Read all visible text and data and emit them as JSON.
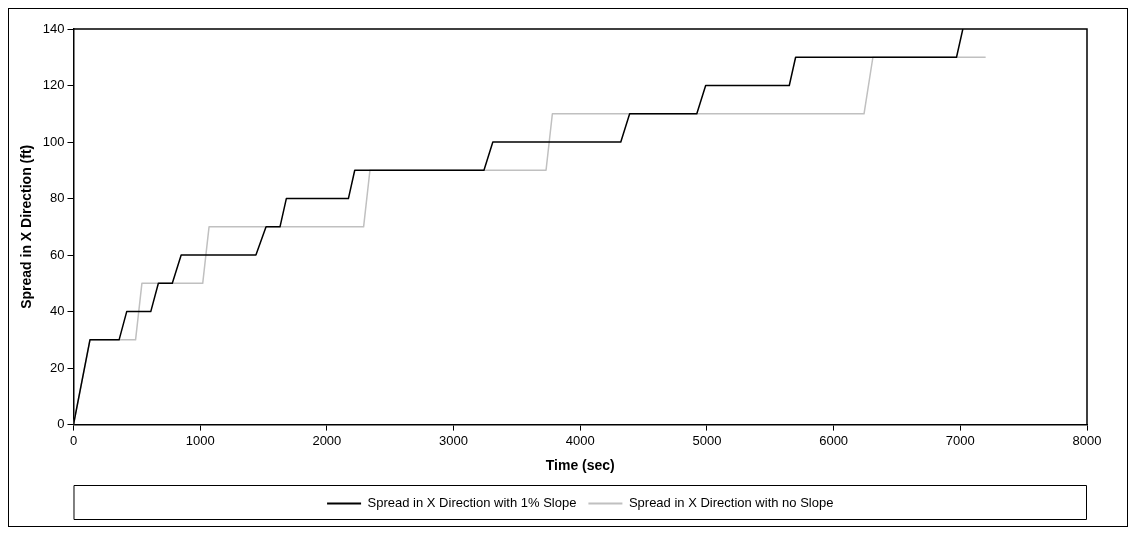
{
  "chart_data": {
    "type": "line",
    "xlabel": "Time (sec)",
    "ylabel": "Spread in X Direction (ft)",
    "xlim": [
      0,
      8000
    ],
    "xticks": [
      0,
      1000,
      2000,
      3000,
      4000,
      5000,
      6000,
      7000,
      8000
    ],
    "ylim": [
      0,
      140
    ],
    "yticks": [
      0,
      20,
      40,
      60,
      80,
      100,
      120,
      140
    ],
    "grid": false,
    "legend": "bottom",
    "marker": "none",
    "line_style": "solid",
    "series": [
      {
        "name": "Spread in X Direction with 1% Slope",
        "color": "#000000",
        "x": [
          0,
          130,
          360,
          420,
          610,
          670,
          780,
          850,
          1440,
          1520,
          1630,
          1680,
          2170,
          2220,
          3240,
          3310,
          4320,
          4390,
          4920,
          4990,
          5650,
          5700,
          6970,
          7020
        ],
        "values": [
          0,
          30,
          30,
          40,
          40,
          50,
          50,
          60,
          60,
          70,
          70,
          80,
          80,
          90,
          90,
          100,
          100,
          110,
          110,
          120,
          120,
          130,
          130,
          140
        ]
      },
      {
        "name": "Spread in X Direction with no Slope",
        "color": "#c0c0c0",
        "x": [
          0,
          130,
          490,
          540,
          1020,
          1070,
          2290,
          2340,
          3730,
          3780,
          6240,
          6310,
          7200
        ],
        "values": [
          0,
          30,
          30,
          50,
          50,
          70,
          70,
          90,
          90,
          110,
          110,
          130,
          130
        ]
      }
    ]
  }
}
